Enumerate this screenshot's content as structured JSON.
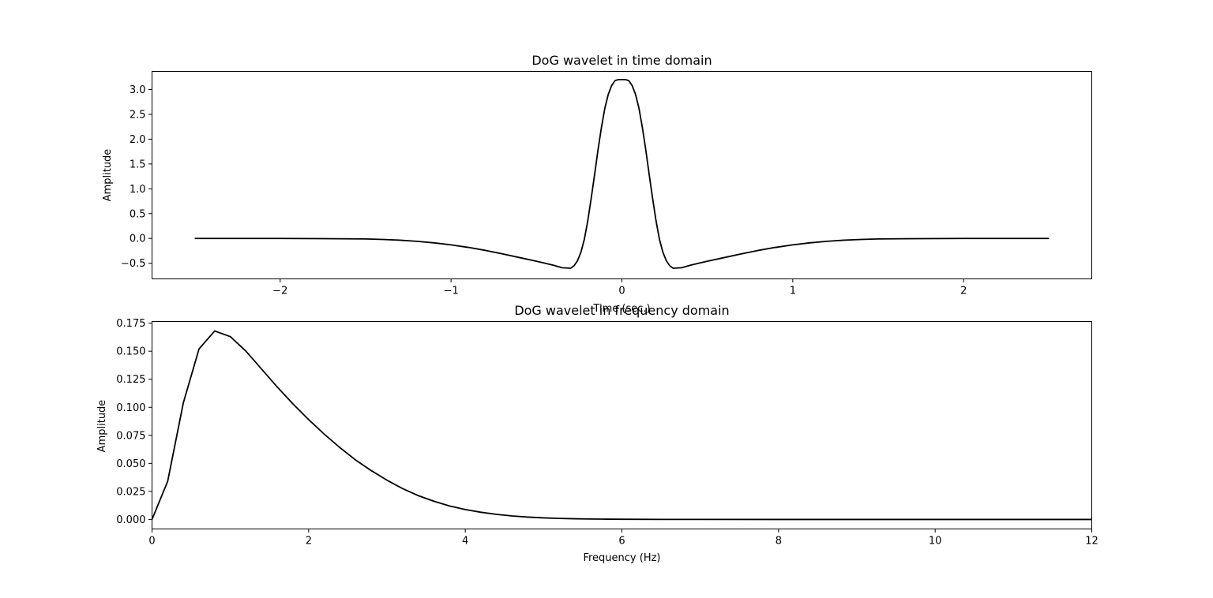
{
  "chart_data": [
    {
      "type": "line",
      "title": "DoG wavelet in time domain",
      "xlabel": "Time (sec.)",
      "ylabel": "Amplitude",
      "xlim": [
        -2.75,
        2.75
      ],
      "ylim": [
        -0.815,
        3.365
      ],
      "xticks": [
        -2,
        -1,
        0,
        1,
        2
      ],
      "xtick_labels": [
        "−2",
        "−1",
        "0",
        "1",
        "2"
      ],
      "yticks": [
        -0.5,
        0.0,
        0.5,
        1.0,
        1.5,
        2.0,
        2.5,
        3.0
      ],
      "ytick_labels": [
        "−0.5",
        "0.0",
        "0.5",
        "1.0",
        "1.5",
        "2.0",
        "2.5",
        "3.0"
      ],
      "grid": false,
      "series": [
        {
          "color": "#000000",
          "x": [
            -2.5,
            -2.25,
            -2.0,
            -1.75,
            -1.5,
            -1.4,
            -1.3,
            -1.2,
            -1.1,
            -1.0,
            -0.9,
            -0.8,
            -0.7,
            -0.6,
            -0.5,
            -0.45,
            -0.4,
            -0.35,
            -0.3,
            -0.28,
            -0.26,
            -0.24,
            -0.22,
            -0.2,
            -0.18,
            -0.16,
            -0.14,
            -0.12,
            -0.1,
            -0.08,
            -0.06,
            -0.04,
            -0.02,
            0.0,
            0.02,
            0.04,
            0.06,
            0.08,
            0.1,
            0.12,
            0.14,
            0.16,
            0.18,
            0.2,
            0.22,
            0.24,
            0.26,
            0.28,
            0.3,
            0.35,
            0.4,
            0.45,
            0.5,
            0.6,
            0.7,
            0.8,
            0.9,
            1.0,
            1.1,
            1.2,
            1.3,
            1.4,
            1.5,
            1.75,
            2.0,
            2.25,
            2.5
          ],
          "y": [
            0.0,
            -0.0002,
            -0.001,
            -0.004,
            -0.011,
            -0.02,
            -0.035,
            -0.058,
            -0.089,
            -0.13,
            -0.18,
            -0.24,
            -0.31,
            -0.385,
            -0.46,
            -0.5,
            -0.54,
            -0.59,
            -0.6,
            -0.55,
            -0.45,
            -0.28,
            -0.02,
            0.35,
            0.8,
            1.28,
            1.78,
            2.23,
            2.62,
            2.9,
            3.08,
            3.18,
            3.2,
            3.2,
            3.2,
            3.18,
            3.08,
            2.9,
            2.62,
            2.23,
            1.78,
            1.28,
            0.8,
            0.35,
            -0.02,
            -0.28,
            -0.45,
            -0.55,
            -0.6,
            -0.59,
            -0.54,
            -0.5,
            -0.46,
            -0.385,
            -0.31,
            -0.24,
            -0.18,
            -0.13,
            -0.089,
            -0.058,
            -0.035,
            -0.02,
            -0.011,
            -0.004,
            -0.001,
            -0.0002,
            0.0
          ]
        }
      ]
    },
    {
      "type": "line",
      "title": "DoG wavelet in frequency domain",
      "xlabel": "Frequency (Hz)",
      "ylabel": "Amplitude",
      "xlim": [
        0,
        12
      ],
      "ylim": [
        -0.0085,
        0.1765
      ],
      "xticks": [
        0,
        2,
        4,
        6,
        8,
        10,
        12
      ],
      "xtick_labels": [
        "0",
        "2",
        "4",
        "6",
        "8",
        "10",
        "12"
      ],
      "yticks": [
        0.0,
        0.025,
        0.05,
        0.075,
        0.1,
        0.125,
        0.15,
        0.175
      ],
      "ytick_labels": [
        "0.000",
        "0.025",
        "0.050",
        "0.075",
        "0.100",
        "0.125",
        "0.150",
        "0.175"
      ],
      "grid": false,
      "series": [
        {
          "color": "#000000",
          "x": [
            0.0,
            0.2,
            0.4,
            0.6,
            0.8,
            1.0,
            1.2,
            1.4,
            1.6,
            1.8,
            2.0,
            2.2,
            2.4,
            2.6,
            2.8,
            3.0,
            3.2,
            3.4,
            3.6,
            3.8,
            4.0,
            4.2,
            4.4,
            4.6,
            4.8,
            5.0,
            5.2,
            5.4,
            5.6,
            5.8,
            6.0,
            6.5,
            7.0,
            8.0,
            9.0,
            10.0,
            11.0,
            12.0
          ],
          "y": [
            0.0,
            0.034,
            0.104,
            0.152,
            0.168,
            0.163,
            0.15,
            0.134,
            0.118,
            0.103,
            0.089,
            0.076,
            0.064,
            0.053,
            0.0435,
            0.035,
            0.0275,
            0.0212,
            0.0162,
            0.012,
            0.0088,
            0.0064,
            0.0045,
            0.0031,
            0.0021,
            0.0014,
            0.00092,
            0.0006,
            0.00038,
            0.00024,
            0.00015,
            5e-05,
            1e-05,
            0.0,
            0.0,
            0.0,
            0.0,
            0.0
          ]
        }
      ]
    }
  ]
}
